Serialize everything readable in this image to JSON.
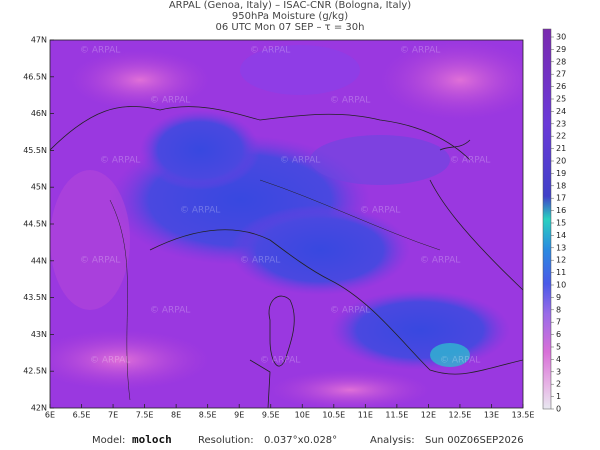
{
  "header": {
    "lines": [
      "ARPAL (Genoa, Italy)  –  ISAC-CNR (Bologna, Italy)",
      "950hPa Moisture (g/kg)",
      "06 UTC Mon 07 SEP  –  τ = 30h"
    ]
  },
  "map": {
    "lat_labels": [
      "47N",
      "46.5N",
      "46N",
      "45.5N",
      "45N",
      "44.5N",
      "44N",
      "43.5N",
      "43N",
      "42.5N",
      "42N"
    ],
    "lon_labels": [
      "6E",
      "6.5E",
      "7E",
      "7.5E",
      "8E",
      "8.5E",
      "9E",
      "9.5E",
      "10E",
      "10.5E",
      "11E",
      "11.5E",
      "12E",
      "12.5E",
      "13E",
      "13.5E"
    ],
    "watermark": "© ARPAL"
  },
  "colorbar": {
    "ticks": [
      0,
      1,
      2,
      3,
      4,
      5,
      6,
      7,
      8,
      9,
      10,
      11,
      12,
      13,
      14,
      15,
      16,
      17,
      18,
      19,
      20,
      21,
      22,
      23,
      24,
      25,
      26,
      27,
      28,
      29,
      30
    ]
  },
  "footer": {
    "model_label": "Model:",
    "model": "moloch",
    "resolution_label": "Resolution:",
    "resolution": "0.037°x0.028°",
    "analysis_label": "Analysis:",
    "analysis": "Sun 00Z06SEP2026"
  }
}
